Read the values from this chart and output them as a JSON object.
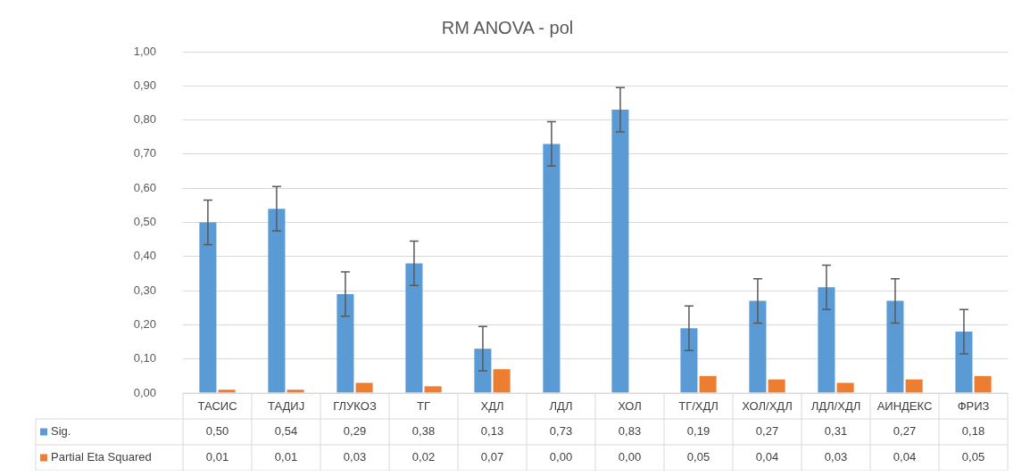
{
  "chart_data": {
    "type": "bar",
    "title": "RM ANOVA - pol",
    "categories": [
      "ТАСИС",
      "ТАДИЈ",
      "ГЛУКОЗ",
      "ТГ",
      "ХДЛ",
      "ЛДЛ",
      "ХОЛ",
      "ТГ/ХДЛ",
      "ХОЛ/ХДЛ",
      "ЛДЛ/ХДЛ",
      "АИНДЕКС",
      "ФРИЗ"
    ],
    "series": [
      {
        "name": "Sig.",
        "color": "#5b9bd5",
        "values": [
          0.5,
          0.54,
          0.29,
          0.38,
          0.13,
          0.73,
          0.83,
          0.19,
          0.27,
          0.31,
          0.27,
          0.18
        ],
        "value_labels": [
          "0,50",
          "0,54",
          "0,29",
          "0,38",
          "0,13",
          "0,73",
          "0,83",
          "0,19",
          "0,27",
          "0,31",
          "0,27",
          "0,18"
        ],
        "errors": [
          0.065,
          0.065,
          0.065,
          0.065,
          0.065,
          0.065,
          0.065,
          0.065,
          0.065,
          0.065,
          0.065,
          0.065
        ]
      },
      {
        "name": "Partial Eta Squared",
        "color": "#ed7d31",
        "values": [
          0.01,
          0.01,
          0.03,
          0.02,
          0.07,
          0.0,
          0.0,
          0.05,
          0.04,
          0.03,
          0.04,
          0.05
        ],
        "value_labels": [
          "0,01",
          "0,01",
          "0,03",
          "0,02",
          "0,07",
          "0,00",
          "0,00",
          "0,05",
          "0,04",
          "0,03",
          "0,04",
          "0,05"
        ]
      }
    ],
    "ylim": [
      0,
      1
    ],
    "yticks": [
      {
        "value": 0,
        "label": "0,00"
      },
      {
        "value": 0.1,
        "label": "0,10"
      },
      {
        "value": 0.2,
        "label": "0,20"
      },
      {
        "value": 0.3,
        "label": "0,30"
      },
      {
        "value": 0.4,
        "label": "0,40"
      },
      {
        "value": 0.5,
        "label": "0,50"
      },
      {
        "value": 0.6,
        "label": "0,60"
      },
      {
        "value": 0.7,
        "label": "0,70"
      },
      {
        "value": 0.8,
        "label": "0,80"
      },
      {
        "value": 0.9,
        "label": "0,90"
      },
      {
        "value": 1,
        "label": "1,00"
      }
    ],
    "grid": "y",
    "legend": "bottom"
  }
}
